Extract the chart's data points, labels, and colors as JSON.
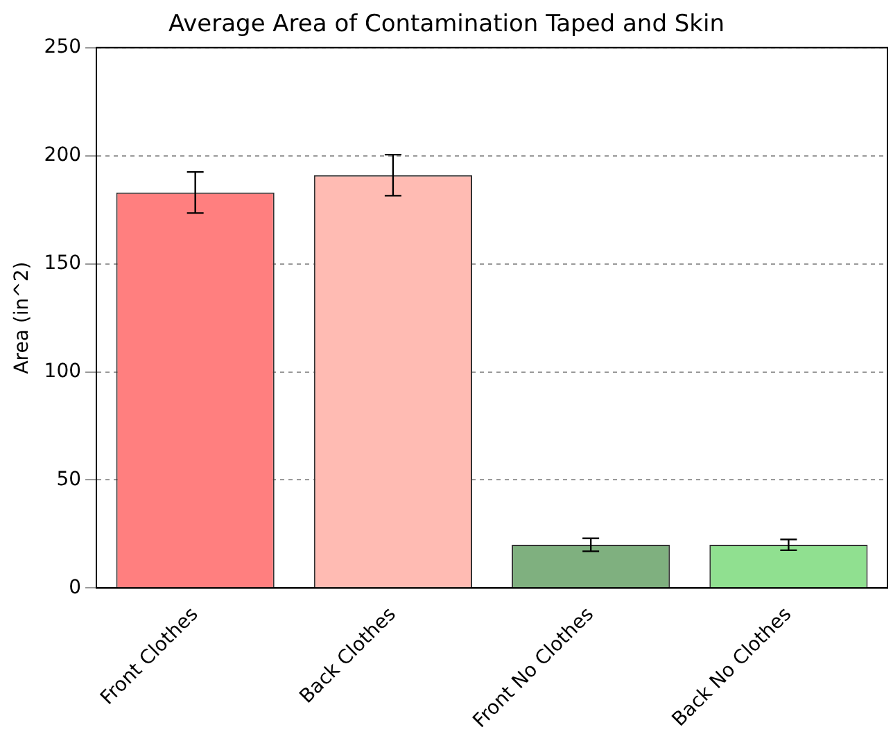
{
  "chart_data": {
    "type": "bar",
    "title": "Average Area of Contamination Taped and Skin",
    "ylabel": "Area (in^2)",
    "categories": [
      "Front Clothes",
      "Back Clothes",
      "Front No Clothes",
      "Back No Clothes"
    ],
    "values": [
      183,
      191,
      20,
      20
    ],
    "colors": [
      "#ff7f7f",
      "#ffbbb3",
      "#7fb07f",
      "#90e090"
    ],
    "errors": [
      9.5,
      9.5,
      3,
      2.5
    ],
    "ylim": [
      0,
      250
    ],
    "yticks": [
      0,
      50,
      100,
      150,
      200,
      250
    ],
    "grid": "y",
    "legend": false
  }
}
